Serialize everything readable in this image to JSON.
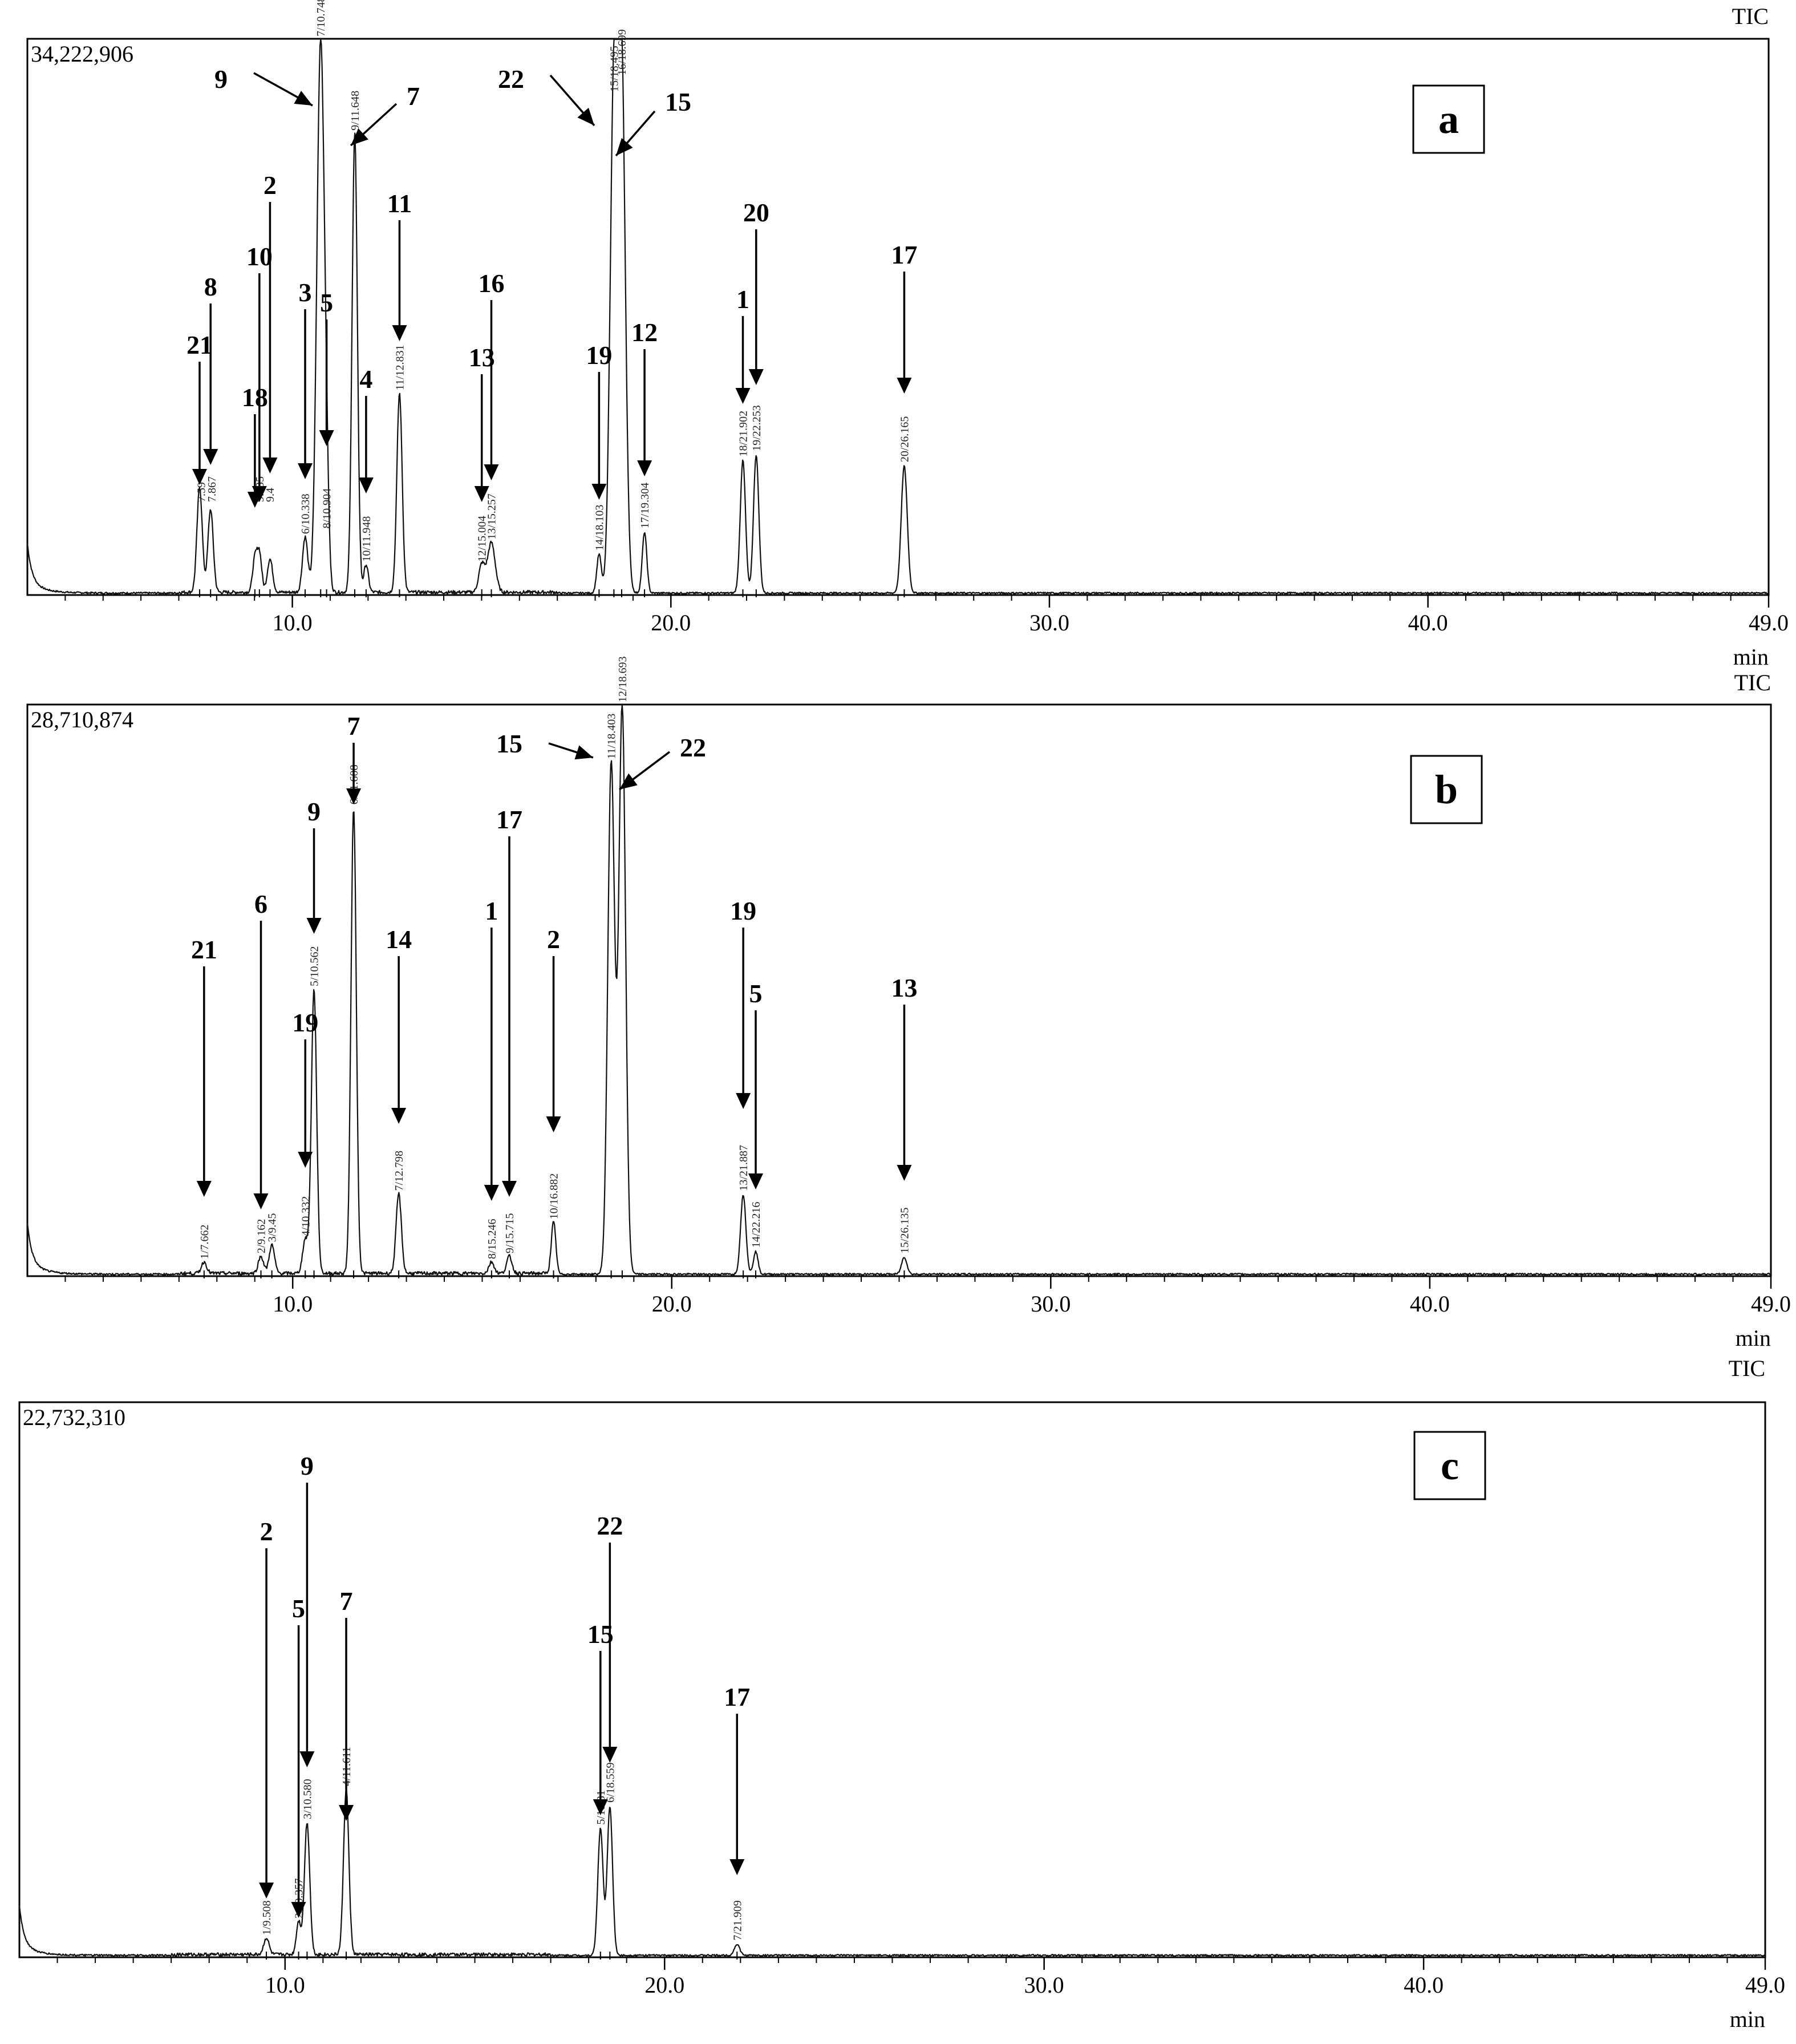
{
  "chart_data": [
    {
      "type": "line",
      "panel_label": "a",
      "channel_label": "TIC",
      "max_intensity_label": "34,222,906",
      "xlabel": "min",
      "xlim": [
        3,
        49
      ],
      "x_ticks": [
        10.0,
        20.0,
        30.0,
        40.0,
        49.0
      ],
      "x_tick_labels": [
        "10.0",
        "20.0",
        "30.0",
        "40.0",
        "49.0"
      ],
      "y_scale_max": 34222906,
      "peaks": [
        {
          "rt": 7.55,
          "height": 0.19,
          "width": 0.07,
          "rt_label": "",
          "number": "21"
        },
        {
          "rt": 7.84,
          "height": 0.15,
          "width": 0.07,
          "rt_label": "",
          "number": "8"
        },
        {
          "rt": 9.01,
          "height": 0.06,
          "width": 0.06,
          "rt_label": "",
          "number": "18"
        },
        {
          "rt": 9.13,
          "height": 0.07,
          "width": 0.06,
          "rt_label": "",
          "number": "10"
        },
        {
          "rt": 9.41,
          "height": 0.06,
          "width": 0.07,
          "rt_label": "",
          "number": "2"
        },
        {
          "rt": 10.338,
          "height": 0.1,
          "width": 0.07,
          "rt_label": "6/10.338",
          "number": "3"
        },
        {
          "rt": 10.748,
          "height": 1.0,
          "width": 0.1,
          "rt_label": "7/10.748",
          "number": "9"
        },
        {
          "rt": 10.904,
          "height": 0.11,
          "width": 0.06,
          "rt_label": "8/10.904",
          "number": "5"
        },
        {
          "rt": 11.648,
          "height": 0.83,
          "width": 0.07,
          "rt_label": "9/11.648",
          "number": "7"
        },
        {
          "rt": 11.948,
          "height": 0.05,
          "width": 0.06,
          "rt_label": "10/11.948",
          "number": "4"
        },
        {
          "rt": 12.831,
          "height": 0.36,
          "width": 0.07,
          "rt_label": "11/12.831",
          "number": "11"
        },
        {
          "rt": 15.004,
          "height": 0.05,
          "width": 0.08,
          "rt_label": "12/15.004",
          "number": "13"
        },
        {
          "rt": 15.257,
          "height": 0.09,
          "width": 0.1,
          "rt_label": "13/15.257",
          "number": "16"
        },
        {
          "rt": 18.103,
          "height": 0.07,
          "width": 0.06,
          "rt_label": "14/18.103",
          "number": "19"
        },
        {
          "rt": 18.495,
          "height": 0.9,
          "width": 0.1,
          "rt_label": "15/18.495",
          "number": "22"
        },
        {
          "rt": 18.699,
          "height": 0.93,
          "width": 0.1,
          "rt_label": "16/18.699",
          "number": "15"
        },
        {
          "rt": 19.304,
          "height": 0.11,
          "width": 0.06,
          "rt_label": "17/19.304",
          "number": "12"
        },
        {
          "rt": 21.902,
          "height": 0.24,
          "width": 0.07,
          "rt_label": "18/21.902",
          "number": "1"
        },
        {
          "rt": 22.253,
          "height": 0.25,
          "width": 0.07,
          "rt_label": "19/22.253",
          "number": "20"
        },
        {
          "rt": 26.165,
          "height": 0.23,
          "width": 0.08,
          "rt_label": "20/26.165",
          "number": "17"
        }
      ],
      "peak_rt_labels_partial": [
        "7.59",
        "7.867",
        "9.135",
        "9.4"
      ]
    },
    {
      "type": "line",
      "panel_label": "b",
      "channel_label": "TIC",
      "max_intensity_label": "28,710,874",
      "xlabel": "min",
      "xlim": [
        3,
        49
      ],
      "x_ticks": [
        10.0,
        20.0,
        30.0,
        40.0,
        49.0
      ],
      "x_tick_labels": [
        "10.0",
        "20.0",
        "30.0",
        "40.0",
        "49.0"
      ],
      "y_scale_max": 28710874,
      "peaks": [
        {
          "rt": 7.662,
          "height": 0.02,
          "width": 0.07,
          "rt_label": "1/7.662",
          "number": "21"
        },
        {
          "rt": 9.162,
          "height": 0.03,
          "width": 0.07,
          "rt_label": "2/9.162",
          "number": "6"
        },
        {
          "rt": 9.45,
          "height": 0.05,
          "width": 0.07,
          "rt_label": "3/9.45",
          "number": ""
        },
        {
          "rt": 10.332,
          "height": 0.06,
          "width": 0.07,
          "rt_label": "4/10.332",
          "number": "19"
        },
        {
          "rt": 10.562,
          "height": 0.5,
          "width": 0.07,
          "rt_label": "5/10.562",
          "number": "9"
        },
        {
          "rt": 11.608,
          "height": 0.82,
          "width": 0.07,
          "rt_label": "6/11.608",
          "number": "7"
        },
        {
          "rt": 12.798,
          "height": 0.14,
          "width": 0.07,
          "rt_label": "7/12.798",
          "number": "14"
        },
        {
          "rt": 15.246,
          "height": 0.02,
          "width": 0.07,
          "rt_label": "8/15.246",
          "number": "1"
        },
        {
          "rt": 15.715,
          "height": 0.03,
          "width": 0.07,
          "rt_label": "9/15.715",
          "number": "17"
        },
        {
          "rt": 16.882,
          "height": 0.09,
          "width": 0.06,
          "rt_label": "10/16.882",
          "number": "2"
        },
        {
          "rt": 18.403,
          "height": 0.9,
          "width": 0.09,
          "rt_label": "11/18.403",
          "number": "15"
        },
        {
          "rt": 18.693,
          "height": 1.0,
          "width": 0.09,
          "rt_label": "12/18.693",
          "number": "22"
        },
        {
          "rt": 21.887,
          "height": 0.14,
          "width": 0.07,
          "rt_label": "13/21.887",
          "number": "19"
        },
        {
          "rt": 22.216,
          "height": 0.04,
          "width": 0.06,
          "rt_label": "14/22.216",
          "number": "5"
        },
        {
          "rt": 26.135,
          "height": 0.03,
          "width": 0.07,
          "rt_label": "15/26.135",
          "number": "13"
        }
      ]
    },
    {
      "type": "line",
      "panel_label": "c",
      "channel_label": "TIC",
      "max_intensity_label": "22,732,310",
      "xlabel": "min",
      "xlim": [
        3,
        49
      ],
      "x_ticks": [
        10.0,
        20.0,
        30.0,
        40.0,
        49.0
      ],
      "x_tick_labels": [
        "10.0",
        "20.0",
        "30.0",
        "40.0",
        "49.0"
      ],
      "y_scale_max": 22732310,
      "peaks": [
        {
          "rt": 9.508,
          "height": 0.03,
          "width": 0.07,
          "rt_label": "1/9.508",
          "number": "2"
        },
        {
          "rt": 10.357,
          "height": 0.06,
          "width": 0.06,
          "rt_label": "2/10.357",
          "number": "5"
        },
        {
          "rt": 10.58,
          "height": 0.24,
          "width": 0.07,
          "rt_label": "3/10.580",
          "number": "9"
        },
        {
          "rt": 11.611,
          "height": 0.3,
          "width": 0.07,
          "rt_label": "4/11.611",
          "number": "7"
        },
        {
          "rt": 18.31,
          "height": 0.23,
          "width": 0.07,
          "rt_label": "5/18.31",
          "number": "15"
        },
        {
          "rt": 18.559,
          "height": 0.27,
          "width": 0.07,
          "rt_label": "6/18.559",
          "number": "22"
        },
        {
          "rt": 21.909,
          "height": 0.02,
          "width": 0.07,
          "rt_label": "7/21.909",
          "number": "17"
        }
      ]
    }
  ]
}
